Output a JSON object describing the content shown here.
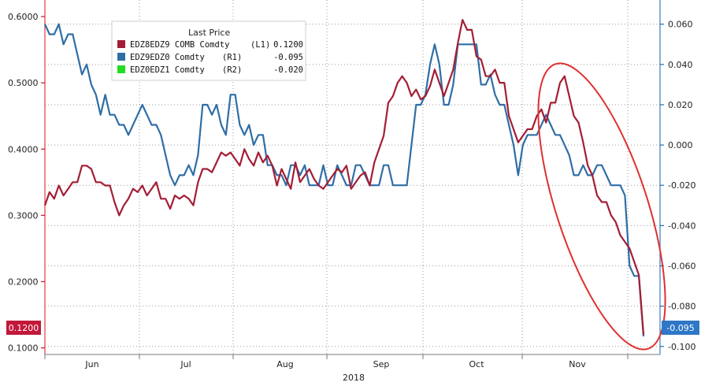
{
  "chart_data": {
    "type": "line",
    "legend": {
      "title": "Last Price",
      "entries": [
        {
          "name": "EDZ8EDZ9 COMB Comdty",
          "axis": "(L1)",
          "value": "0.1200",
          "color": "#a31e35"
        },
        {
          "name": "EDZ9EDZ0 Comdty",
          "axis": "(R1)",
          "value": "-0.095",
          "color": "#2e6ea6"
        },
        {
          "name": "EDZ0EDZ1 Comdty",
          "axis": "(R2)",
          "value": "-0.020",
          "color": "#22dd22"
        }
      ]
    },
    "x_axis": {
      "months": [
        "Jun",
        "Jul",
        "Aug",
        "Sep",
        "Oct",
        "Nov"
      ],
      "year": "2018"
    },
    "y_left": {
      "ticks": [
        "0.6000",
        "0.5000",
        "0.4000",
        "0.3000",
        "0.2000",
        "0.1000"
      ],
      "tick_values": [
        0.6,
        0.5,
        0.4,
        0.3,
        0.2,
        0.1
      ],
      "range": [
        0.09,
        0.625
      ],
      "color": "#d0122f"
    },
    "y_right": {
      "ticks": [
        "0.060",
        "0.040",
        "0.020",
        "0.000",
        "-0.020",
        "-0.040",
        "-0.060",
        "-0.080",
        "-0.100"
      ],
      "tick_values": [
        0.06,
        0.04,
        0.02,
        0.0,
        -0.02,
        -0.04,
        -0.06,
        -0.08,
        -0.1
      ],
      "range": [
        -0.104,
        0.072
      ],
      "color": "#1f6fb0"
    },
    "end_tags": {
      "left": "0.1200",
      "right": "-0.095"
    },
    "series": [
      {
        "name": "EDZ8EDZ9 COMB Comdty",
        "axis": "left",
        "color": "#a31e35",
        "values": [
          0.315,
          0.335,
          0.325,
          0.345,
          0.33,
          0.34,
          0.35,
          0.35,
          0.375,
          0.375,
          0.37,
          0.35,
          0.35,
          0.345,
          0.345,
          0.32,
          0.3,
          0.315,
          0.325,
          0.34,
          0.335,
          0.345,
          0.33,
          0.34,
          0.35,
          0.325,
          0.325,
          0.31,
          0.33,
          0.325,
          0.33,
          0.325,
          0.315,
          0.35,
          0.37,
          0.37,
          0.365,
          0.38,
          0.395,
          0.39,
          0.395,
          0.385,
          0.375,
          0.4,
          0.385,
          0.375,
          0.395,
          0.38,
          0.39,
          0.375,
          0.345,
          0.37,
          0.355,
          0.34,
          0.38,
          0.35,
          0.36,
          0.37,
          0.355,
          0.345,
          0.34,
          0.35,
          0.36,
          0.37,
          0.365,
          0.375,
          0.34,
          0.35,
          0.36,
          0.365,
          0.345,
          0.38,
          0.4,
          0.42,
          0.47,
          0.48,
          0.5,
          0.51,
          0.5,
          0.48,
          0.49,
          0.475,
          0.48,
          0.495,
          0.52,
          0.5,
          0.48,
          0.5,
          0.52,
          0.56,
          0.595,
          0.58,
          0.58,
          0.54,
          0.535,
          0.51,
          0.51,
          0.52,
          0.5,
          0.5,
          0.45,
          0.43,
          0.41,
          0.42,
          0.43,
          0.43,
          0.45,
          0.46,
          0.44,
          0.47,
          0.47,
          0.5,
          0.51,
          0.48,
          0.45,
          0.44,
          0.41,
          0.375,
          0.36,
          0.33,
          0.32,
          0.32,
          0.3,
          0.29,
          0.27,
          0.26,
          0.25,
          0.23,
          0.21,
          0.12
        ]
      },
      {
        "name": "EDZ9EDZ0 Comdty",
        "axis": "right",
        "color": "#2e6ea6",
        "values": [
          0.06,
          0.055,
          0.055,
          0.06,
          0.05,
          0.055,
          0.055,
          0.045,
          0.035,
          0.04,
          0.03,
          0.025,
          0.015,
          0.025,
          0.015,
          0.015,
          0.01,
          0.01,
          0.005,
          0.01,
          0.015,
          0.02,
          0.015,
          0.01,
          0.01,
          0.005,
          -0.005,
          -0.015,
          -0.02,
          -0.015,
          -0.015,
          -0.01,
          -0.015,
          -0.005,
          0.02,
          0.02,
          0.015,
          0.02,
          0.01,
          0.005,
          0.025,
          0.025,
          0.01,
          0.005,
          0.01,
          0.0,
          0.005,
          0.005,
          -0.01,
          -0.01,
          -0.015,
          -0.015,
          -0.02,
          -0.01,
          -0.01,
          -0.015,
          -0.01,
          -0.02,
          -0.02,
          -0.02,
          -0.01,
          -0.02,
          -0.02,
          -0.01,
          -0.015,
          -0.02,
          -0.02,
          -0.01,
          -0.01,
          -0.015,
          -0.02,
          -0.02,
          -0.02,
          -0.01,
          -0.01,
          -0.02,
          -0.02,
          -0.02,
          -0.02,
          0.0,
          0.02,
          0.02,
          0.025,
          0.04,
          0.05,
          0.04,
          0.02,
          0.02,
          0.03,
          0.05,
          0.05,
          0.05,
          0.05,
          0.05,
          0.03,
          0.03,
          0.035,
          0.025,
          0.02,
          0.02,
          0.01,
          0.0,
          -0.015,
          0.0,
          0.005,
          0.005,
          0.005,
          0.01,
          0.015,
          0.01,
          0.005,
          0.005,
          0.0,
          -0.005,
          -0.015,
          -0.015,
          -0.01,
          -0.015,
          -0.015,
          -0.01,
          -0.01,
          -0.015,
          -0.02,
          -0.02,
          -0.02,
          -0.025,
          -0.06,
          -0.065,
          -0.065,
          -0.095
        ]
      }
    ],
    "annotations": [
      {
        "type": "ellipse",
        "color": "#e03030",
        "label": ""
      }
    ]
  }
}
